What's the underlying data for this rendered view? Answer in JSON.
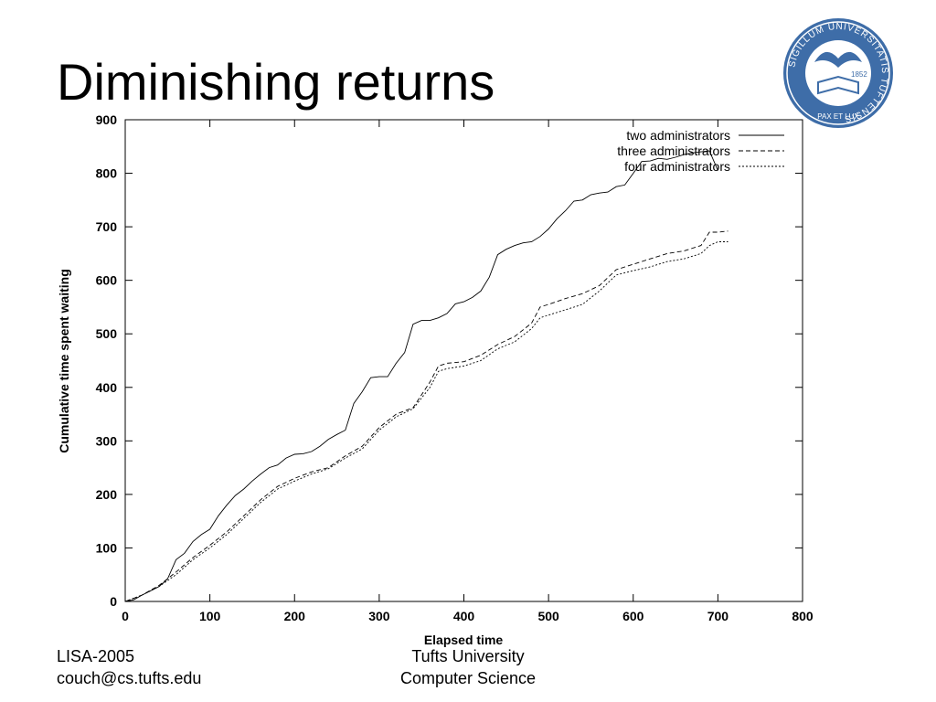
{
  "slide": {
    "title": "Diminishing returns",
    "footer_left": [
      "LISA-2005",
      "couch@cs.tufts.edu"
    ],
    "footer_center": [
      "Tufts University",
      "Computer Science"
    ]
  },
  "seal": {
    "text": "SIGILLUM UNIVERSITATIS TUFTENSIS",
    "motto": "PAX ET LUX",
    "year": "1852",
    "color": "#3e6da8",
    "icon": "university-seal-icon"
  },
  "chart_data": {
    "type": "line",
    "xlabel": "Elapsed time",
    "ylabel": "Cumulative time spent waiting",
    "xlim": [
      0,
      800
    ],
    "ylim": [
      0,
      900
    ],
    "x_ticks": [
      0,
      100,
      200,
      300,
      400,
      500,
      600,
      700,
      800
    ],
    "y_ticks": [
      0,
      100,
      200,
      300,
      400,
      500,
      600,
      700,
      800,
      900
    ],
    "grid": false,
    "legend_position": "top-right",
    "series": [
      {
        "name": "two administrators",
        "style": "solid",
        "x": [
          0,
          10,
          20,
          30,
          40,
          50,
          60,
          70,
          80,
          90,
          100,
          110,
          120,
          130,
          140,
          150,
          160,
          170,
          180,
          190,
          200,
          210,
          220,
          230,
          240,
          250,
          260,
          270,
          280,
          290,
          300,
          310,
          320,
          330,
          340,
          350,
          360,
          370,
          380,
          390,
          400,
          410,
          420,
          430,
          440,
          450,
          460,
          470,
          480,
          490,
          500,
          510,
          520,
          530,
          540,
          550,
          560,
          570,
          580,
          590,
          600,
          610,
          620,
          630,
          640,
          650,
          660,
          670,
          680,
          690,
          700
        ],
        "y": [
          0,
          3,
          12,
          20,
          28,
          42,
          78,
          90,
          112,
          125,
          135,
          160,
          180,
          198,
          210,
          225,
          238,
          250,
          255,
          268,
          275,
          276,
          280,
          290,
          303,
          312,
          320,
          370,
          392,
          418,
          420,
          420,
          445,
          465,
          518,
          525,
          525,
          530,
          538,
          556,
          560,
          568,
          580,
          606,
          648,
          658,
          665,
          670,
          672,
          682,
          696,
          715,
          730,
          748,
          750,
          760,
          763,
          765,
          775,
          778,
          800,
          822,
          823,
          828,
          826,
          830,
          835,
          838,
          840,
          842,
          805
        ],
        "color": "#000000"
      },
      {
        "name": "three administrators",
        "style": "dashed",
        "x": [
          0,
          20,
          40,
          60,
          80,
          100,
          120,
          140,
          160,
          180,
          200,
          220,
          240,
          260,
          280,
          300,
          320,
          340,
          360,
          370,
          380,
          400,
          420,
          440,
          460,
          480,
          490,
          500,
          520,
          540,
          560,
          580,
          600,
          620,
          640,
          660,
          680,
          690,
          700,
          712
        ],
        "y": [
          0,
          12,
          30,
          55,
          82,
          105,
          130,
          160,
          190,
          215,
          230,
          242,
          250,
          272,
          290,
          325,
          350,
          362,
          410,
          440,
          445,
          448,
          460,
          480,
          495,
          520,
          550,
          555,
          566,
          575,
          590,
          620,
          630,
          640,
          650,
          655,
          665,
          690,
          690,
          692
        ],
        "color": "#000000"
      },
      {
        "name": "four administrators",
        "style": "dotted",
        "x": [
          0,
          20,
          40,
          60,
          80,
          100,
          120,
          140,
          160,
          180,
          200,
          220,
          240,
          260,
          280,
          300,
          320,
          340,
          360,
          370,
          380,
          400,
          420,
          440,
          460,
          480,
          490,
          500,
          520,
          540,
          560,
          580,
          600,
          620,
          640,
          660,
          680,
          690,
          700,
          712
        ],
        "y": [
          0,
          12,
          28,
          50,
          78,
          100,
          125,
          155,
          185,
          210,
          225,
          238,
          248,
          268,
          285,
          320,
          345,
          360,
          400,
          430,
          435,
          440,
          450,
          472,
          485,
          510,
          530,
          535,
          545,
          555,
          580,
          610,
          618,
          625,
          635,
          640,
          650,
          665,
          672,
          672
        ],
        "color": "#000000"
      }
    ]
  }
}
